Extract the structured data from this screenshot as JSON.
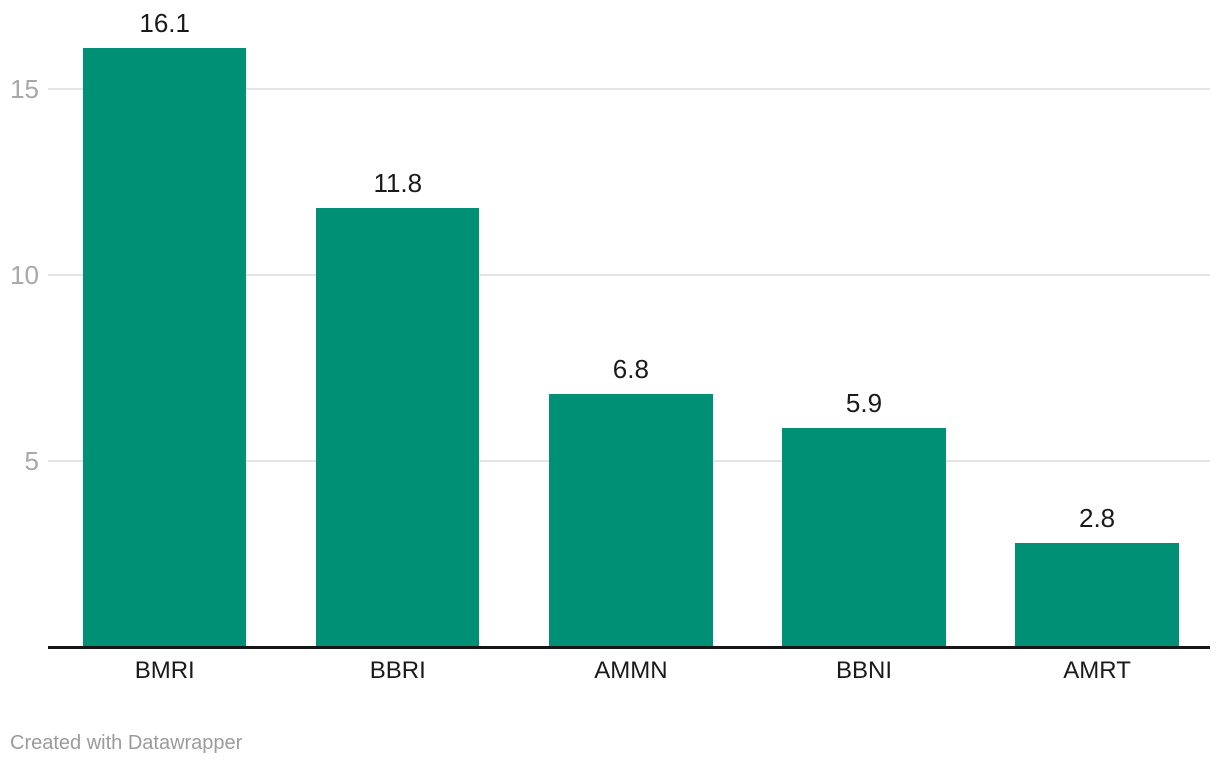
{
  "chart_data": {
    "type": "bar",
    "categories": [
      "BMRI",
      "BBRI",
      "AMMN",
      "BBNI",
      "AMRT"
    ],
    "values": [
      16.1,
      11.8,
      6.8,
      5.9,
      2.8
    ],
    "value_labels": [
      "16.1",
      "11.8",
      "6.8",
      "5.9",
      "2.8"
    ],
    "title": "",
    "xlabel": "",
    "ylabel": "",
    "ylim": [
      0,
      16.5
    ],
    "yticks": [
      5,
      10,
      15
    ],
    "ytick_labels": [
      "5",
      "10",
      "15"
    ],
    "grid": "horizontal-only",
    "legend": "none",
    "bar_color": "#009076"
  },
  "colors": {
    "background": "#ffffff",
    "bar": "#009076",
    "gridline": "#e4e4e4",
    "axis_line": "#161616",
    "tick_label": "#a8a8a8",
    "data_label": "#1a1a1a",
    "footer_text": "#9b9b9b"
  },
  "footer": {
    "credit": "Created with Datawrapper"
  }
}
